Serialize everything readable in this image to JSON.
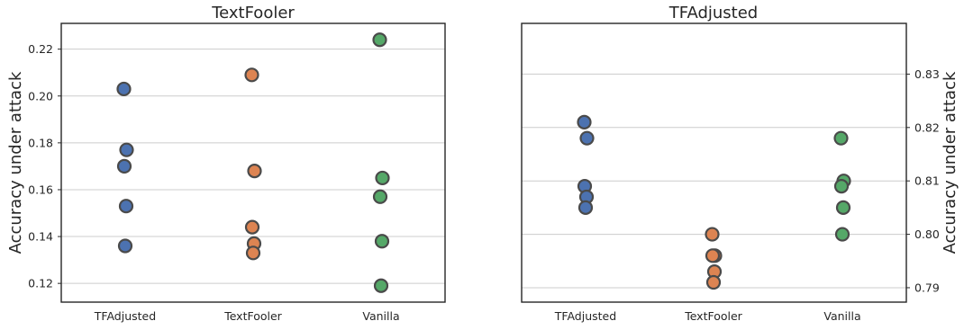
{
  "chart_data": [
    {
      "type": "scatter",
      "title": "TextFooler",
      "ylabel": "Accuracy under attack",
      "yaxis_side": "left",
      "ylim": [
        0.112,
        0.231
      ],
      "yticks": [
        0.12,
        0.14,
        0.16,
        0.18,
        0.2,
        0.22
      ],
      "ytick_labels": [
        "0.12",
        "0.14",
        "0.16",
        "0.18",
        "0.20",
        "0.22"
      ],
      "grid": true,
      "categories": [
        "TFAdjusted",
        "TextFooler",
        "Vanilla"
      ],
      "colors": [
        "#4c72b0",
        "#dd8452",
        "#55a868"
      ],
      "values": [
        [
          0.203,
          0.177,
          0.17,
          0.153,
          0.136
        ],
        [
          0.209,
          0.168,
          0.144,
          0.137,
          0.133
        ],
        [
          0.224,
          0.165,
          0.157,
          0.138,
          0.119
        ]
      ]
    },
    {
      "type": "scatter",
      "title": "TFAdjusted",
      "ylabel": "Accuracy under attack",
      "yaxis_side": "right",
      "ylim": [
        0.7873,
        0.8395
      ],
      "yticks": [
        0.79,
        0.8,
        0.81,
        0.82,
        0.83
      ],
      "ytick_labels": [
        "0.79",
        "0.80",
        "0.81",
        "0.82",
        "0.83"
      ],
      "grid": true,
      "categories": [
        "TFAdjusted",
        "TextFooler",
        "Vanilla"
      ],
      "colors": [
        "#4c72b0",
        "#dd8452",
        "#55a868"
      ],
      "values": [
        [
          0.821,
          0.818,
          0.809,
          0.807,
          0.805
        ],
        [
          0.8,
          0.796,
          0.796,
          0.793,
          0.791
        ],
        [
          0.818,
          0.81,
          0.809,
          0.805,
          0.8
        ]
      ]
    }
  ]
}
